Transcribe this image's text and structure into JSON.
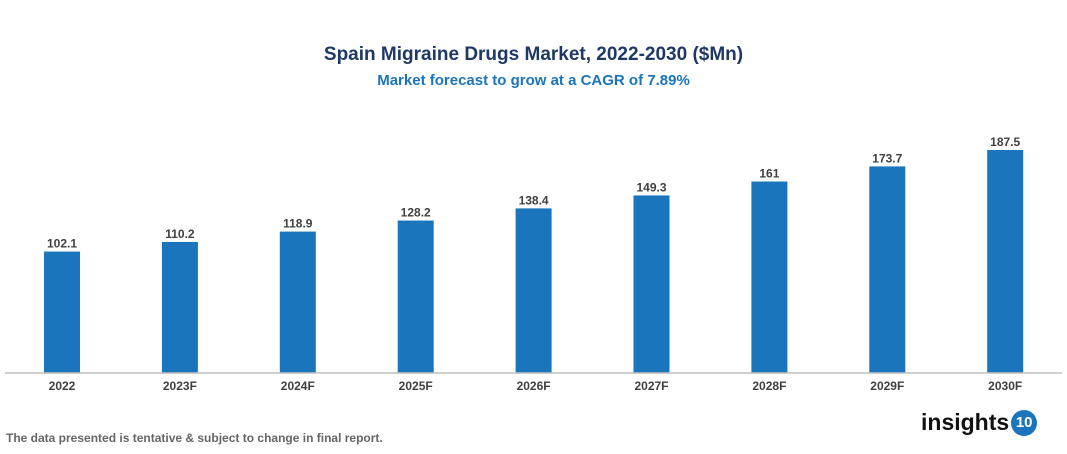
{
  "chart_data": {
    "type": "bar",
    "title": "Spain Migraine Drugs Market, 2022-2030 ($Mn)",
    "subtitle": "Market forecast to grow at a CAGR of 7.89%",
    "categories": [
      "2022",
      "2023F",
      "2024F",
      "2025F",
      "2026F",
      "2027F",
      "2028F",
      "2029F",
      "2030F"
    ],
    "values": [
      102.1,
      110.2,
      118.9,
      128.2,
      138.4,
      149.3,
      161,
      173.7,
      187.5
    ],
    "data_labels": [
      "102.1",
      "110.2",
      "118.9",
      "128.2",
      "138.4",
      "149.3",
      "161",
      "173.7",
      "187.5"
    ],
    "xlabel": "",
    "ylabel": "",
    "ylim": [
      0,
      188
    ],
    "grid": false,
    "bar_color": "#1a75bc"
  },
  "footer": {
    "disclaimer": "The data presented is tentative & subject to change in final report."
  },
  "logo": {
    "text": "insights",
    "badge": "10"
  }
}
